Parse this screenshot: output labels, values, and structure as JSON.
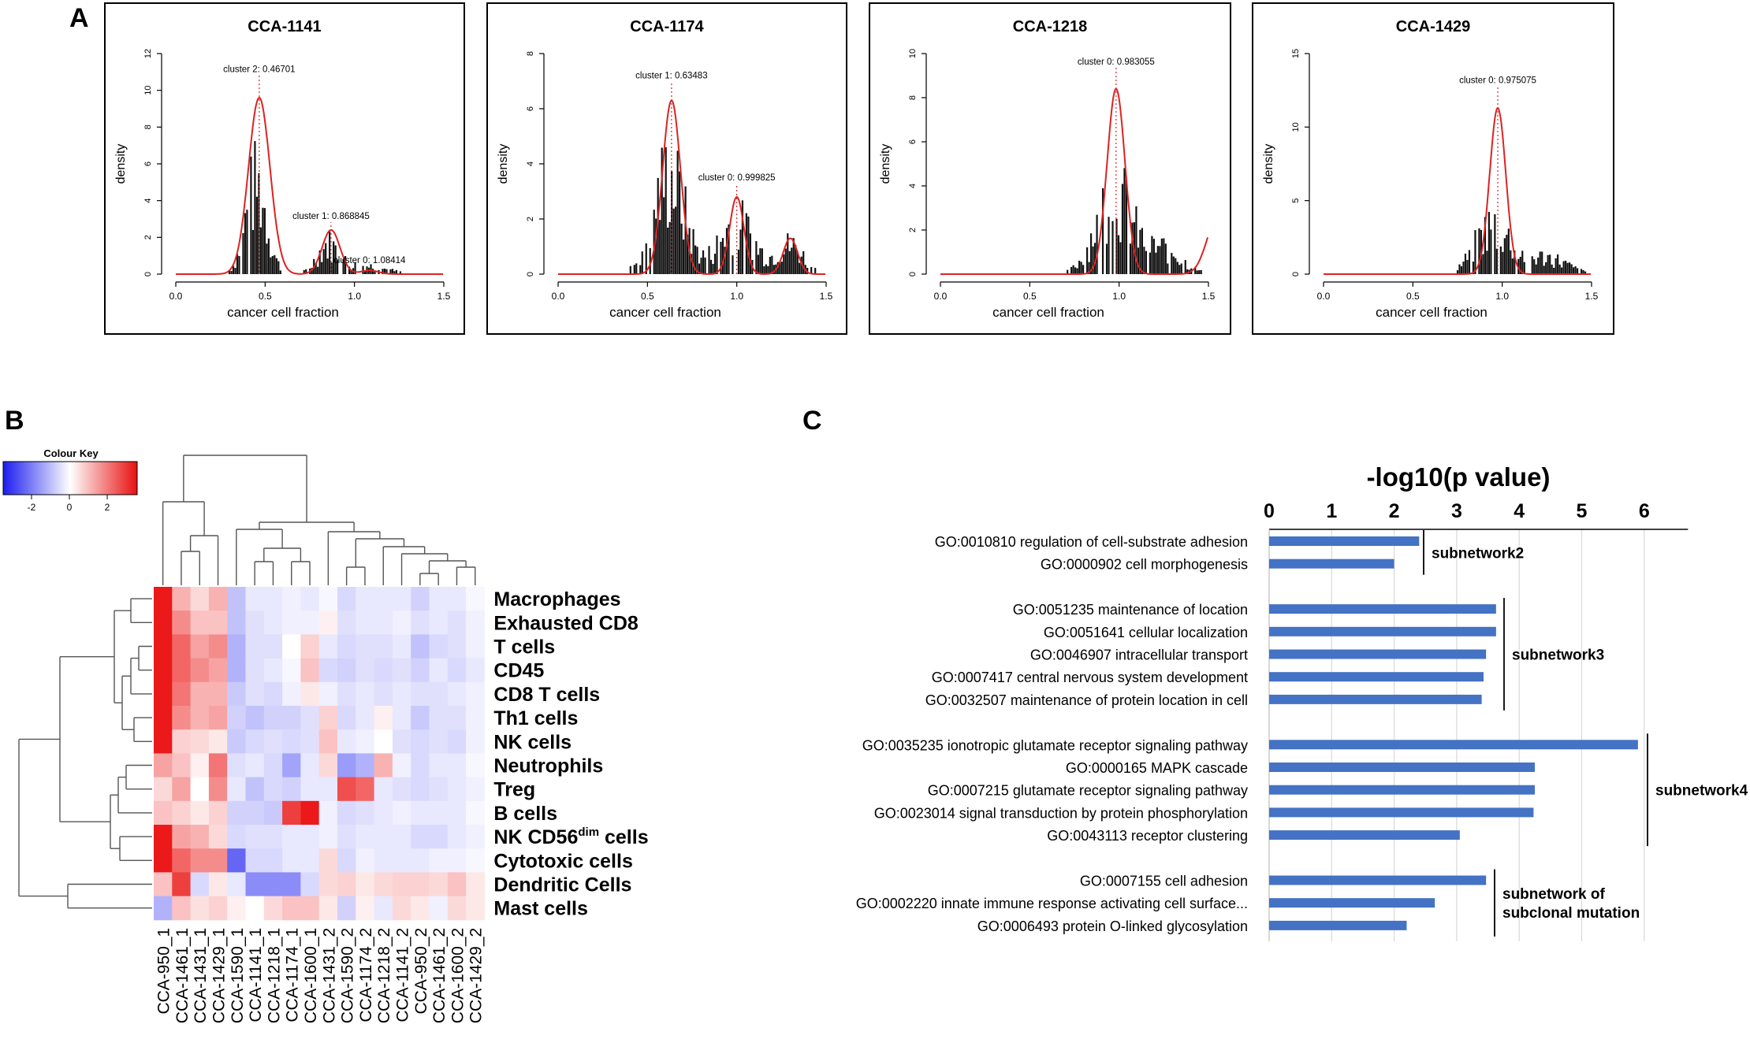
{
  "panel_labels": {
    "a": "A",
    "b": "B",
    "c": "C"
  },
  "panel_a": {
    "xlabel": "cancer cell fraction",
    "ylabel": "density",
    "xticks": [
      "0.0",
      "0.5",
      "1.0",
      "1.5"
    ],
    "plots": [
      {
        "title": "CCA-1141",
        "yticks": [
          "0",
          "2",
          "4",
          "6",
          "8",
          "10",
          "12"
        ],
        "ymax": 12,
        "annotations": [
          {
            "text": "cluster 2: 0.46701",
            "x": 0.46701,
            "y": 11.0
          },
          {
            "text": "cluster 1: 0.868845",
            "x": 0.868845,
            "y": 3.0
          },
          {
            "text": "cluster 0: 1.08414",
            "x": 1.08414,
            "y": 0.6
          }
        ]
      },
      {
        "title": "CCA-1174",
        "yticks": [
          "0",
          "2",
          "4",
          "6",
          "8"
        ],
        "ymax": 8,
        "annotations": [
          {
            "text": "cluster 1: 0.63483",
            "x": 0.63483,
            "y": 7.1
          },
          {
            "text": "cluster 0: 0.999825",
            "x": 0.999825,
            "y": 3.4
          }
        ]
      },
      {
        "title": "CCA-1218",
        "yticks": [
          "0",
          "2",
          "4",
          "6",
          "8",
          "10"
        ],
        "ymax": 10,
        "annotations": [
          {
            "text": "cluster 0: 0.983055",
            "x": 0.983055,
            "y": 9.5
          }
        ]
      },
      {
        "title": "CCA-1429",
        "yticks": [
          "0",
          "5",
          "10",
          "15"
        ],
        "ymax": 15,
        "annotations": [
          {
            "text": "cluster 0: 0.975075",
            "x": 0.975075,
            "y": 13.0
          }
        ]
      }
    ]
  },
  "panel_b": {
    "colour_key_title": "Colour Key",
    "colour_key_ticks": [
      "-2",
      "0",
      "2"
    ],
    "rows": [
      "Macrophages",
      "Exhausted CD8",
      "T cells",
      "CD45",
      "CD8 T cells",
      "Th1 cells",
      "NK cells",
      "Neutrophils",
      "Treg",
      "B cells",
      "NK CD56",
      "Cytotoxic cells",
      "Dendritic Cells",
      "Mast cells"
    ],
    "nk_superscript": "dim",
    "nk_suffix": " cells",
    "columns": [
      "CCA-950_1",
      "CCA-1461_1",
      "CCA-1431_1",
      "CCA-1429_1",
      "CCA-1590_1",
      "CCA-1141_1",
      "CCA-1218_1",
      "CCA-1174_1",
      "CCA-1600_1",
      "CCA-1431_2",
      "CCA-1590_2",
      "CCA-1174_2",
      "CCA-1218_2",
      "CCA-1141_2",
      "CCA-950_2",
      "CCA-1461_2",
      "CCA-1600_2",
      "CCA-1429_2"
    ],
    "values": [
      [
        3,
        1,
        0.5,
        1,
        -0.8,
        -0.3,
        -0.3,
        -0.2,
        -0.3,
        -0.1,
        -0.5,
        -0.3,
        -0.3,
        -0.3,
        -0.6,
        -0.3,
        -0.3,
        -0.1
      ],
      [
        3,
        1.5,
        0.8,
        0.8,
        -0.8,
        -0.4,
        -0.3,
        -0.2,
        -0.2,
        0.2,
        -0.4,
        -0.3,
        -0.3,
        -0.2,
        -0.4,
        -0.3,
        -0.4,
        -0.2
      ],
      [
        3,
        2,
        1.2,
        1.5,
        -1,
        -0.4,
        -0.4,
        0,
        0.6,
        -0.3,
        -0.5,
        -0.4,
        -0.4,
        -0.3,
        -0.8,
        -0.5,
        -0.4,
        -0.2
      ],
      [
        3,
        2,
        1.5,
        1.2,
        -1,
        -0.4,
        -0.3,
        -0.1,
        0.8,
        -0.5,
        -0.6,
        -0.4,
        -0.5,
        -0.4,
        -0.6,
        -0.3,
        -0.5,
        -0.3
      ],
      [
        3,
        1.8,
        1,
        1,
        -0.7,
        -0.4,
        -0.5,
        -0.2,
        0.3,
        -0.2,
        -0.4,
        -0.3,
        -0.4,
        -0.3,
        -0.4,
        -0.4,
        -0.3,
        -0.2
      ],
      [
        3,
        1.5,
        1,
        1.2,
        -0.6,
        -0.8,
        -0.6,
        -0.6,
        -0.4,
        0.6,
        -0.5,
        -0.3,
        0.2,
        -0.3,
        -0.7,
        -0.4,
        -0.4,
        -0.2
      ],
      [
        3.5,
        0.6,
        0.5,
        0.3,
        -0.7,
        -0.5,
        -0.4,
        -0.5,
        -0.4,
        0.8,
        -0.3,
        -0.2,
        0,
        -0.4,
        -0.5,
        -0.4,
        -0.5,
        -0.2
      ],
      [
        1.2,
        0.8,
        0.2,
        1.8,
        -0.4,
        -0.3,
        -0.5,
        -1.2,
        -0.3,
        0.5,
        -1.3,
        -1,
        1,
        -0.2,
        -0.5,
        -0.3,
        -0.3,
        -0.1
      ],
      [
        0.5,
        1.2,
        0,
        1.5,
        -0.3,
        -0.8,
        -0.5,
        -0.6,
        -0.3,
        -0.3,
        2.3,
        2,
        -0.3,
        -0.4,
        -0.5,
        -0.4,
        -0.3,
        -0.2
      ],
      [
        0.8,
        0.6,
        0.3,
        0.6,
        -0.6,
        -0.6,
        -0.7,
        2.5,
        3,
        -0.2,
        -0.5,
        -0.4,
        -0.3,
        -0.2,
        -0.3,
        -0.3,
        -0.3,
        -0.1
      ],
      [
        3,
        1.2,
        1,
        0.5,
        -0.5,
        -0.4,
        -0.4,
        -0.3,
        -0.3,
        -0.2,
        -0.4,
        -0.3,
        -0.3,
        -0.3,
        -0.5,
        -0.5,
        -0.3,
        -0.2
      ],
      [
        3,
        2,
        1.5,
        1.5,
        -2,
        -0.5,
        -0.5,
        -0.3,
        -0.3,
        0.5,
        -0.5,
        -0.2,
        -0.3,
        -0.3,
        -0.3,
        -0.2,
        -0.2,
        -0.1
      ],
      [
        0.8,
        2.5,
        -0.5,
        0.3,
        -0.3,
        -1.5,
        -1.5,
        -1.5,
        -0.5,
        0.5,
        0.6,
        0.3,
        0.5,
        0.6,
        0.6,
        0.5,
        0.8,
        0.3
      ],
      [
        -1,
        0.8,
        0.4,
        0.6,
        0.2,
        0,
        0.5,
        0.8,
        0.8,
        0.3,
        -0.6,
        0.2,
        -0.3,
        0.5,
        0.3,
        -0.2,
        0.5,
        0.3
      ]
    ]
  },
  "panel_c": {
    "title": "-log10(p value)",
    "ticks": [
      "0",
      "1",
      "2",
      "3",
      "4",
      "5",
      "6"
    ],
    "xmax": 6.7,
    "groups": [
      {
        "name": "subnetwork2",
        "name_line2": "",
        "bars": [
          {
            "label": "GO:0010810   regulation of cell-substrate adhesion",
            "value": 2.4
          },
          {
            "label": "GO:0000902   cell morphogenesis",
            "value": 2.0
          }
        ]
      },
      {
        "name": "subnetwork3",
        "name_line2": "",
        "bars": [
          {
            "label": "GO:0051235   maintenance of location",
            "value": 3.63
          },
          {
            "label": "GO:0051641   cellular localization",
            "value": 3.63
          },
          {
            "label": "GO:0046907   intracellular transport",
            "value": 3.47
          },
          {
            "label": "GO:0007417   central nervous system development",
            "value": 3.43
          },
          {
            "label": "GO:0032507   maintenance of protein location in cell",
            "value": 3.4
          }
        ]
      },
      {
        "name": "subnetwork4",
        "name_line2": "",
        "bars": [
          {
            "label": "GO:0035235   ionotropic glutamate receptor signaling pathway",
            "value": 5.9
          },
          {
            "label": "GO:0000165   MAPK cascade",
            "value": 4.25
          },
          {
            "label": "GO:0007215   glutamate receptor signaling pathway",
            "value": 4.25
          },
          {
            "label": "GO:0023014   signal transduction by protein phosphorylation",
            "value": 4.23
          },
          {
            "label": "GO:0043113   receptor clustering",
            "value": 3.05
          }
        ]
      },
      {
        "name": "subnetwork of",
        "name_line2": "subclonal mutation",
        "bars": [
          {
            "label": "GO:0007155   cell adhesion",
            "value": 3.47
          },
          {
            "label": "GO:0002220   innate immune response activating cell surface...",
            "value": 2.65
          },
          {
            "label": "GO:0006493   protein O-linked glycosylation",
            "value": 2.2
          }
        ]
      }
    ]
  },
  "colors": {
    "curve": "#dd2222",
    "bar_blue": "#4472c4",
    "hist": "#111111",
    "grid": "#d9d9d9"
  }
}
